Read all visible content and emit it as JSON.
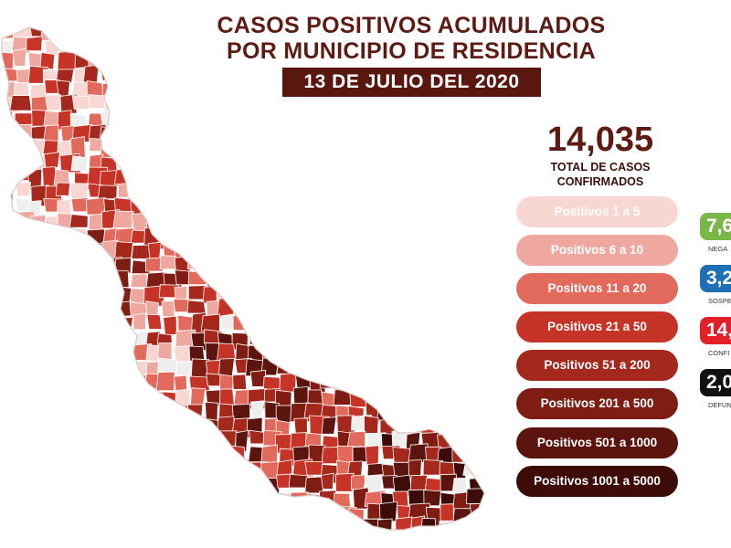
{
  "header": {
    "title_line1": "CASOS POSITIVOS ACUMULADOS",
    "title_line2": "POR MUNICIPIO DE RESIDENCIA",
    "date": "13 DE JULIO DEL 2020"
  },
  "summary": {
    "total": "14,035",
    "total_label_line1": "TOTAL DE CASOS",
    "total_label_line2": "CONFIRMADOS"
  },
  "legend": [
    {
      "label": "Positivos 1 a 5",
      "color": "#f8d7d3",
      "text_color": "#ffffff"
    },
    {
      "label": "Positivos 6 a 10",
      "color": "#efa8a0",
      "text_color": "#ffffff"
    },
    {
      "label": "Positivos 11 a 20",
      "color": "#e26a5c",
      "text_color": "#ffffff"
    },
    {
      "label": "Positivos 21 a 50",
      "color": "#c63427",
      "text_color": "#ffffff"
    },
    {
      "label": "Positivos 51 a 200",
      "color": "#a4281c",
      "text_color": "#ffffff"
    },
    {
      "label": "Positivos 201 a 500",
      "color": "#7f1d14",
      "text_color": "#ffffff"
    },
    {
      "label": "Positivos 501 a 1000",
      "color": "#5c140e",
      "text_color": "#ffffff"
    },
    {
      "label": "Positivos 1001 a 5000",
      "color": "#3d0c08",
      "text_color": "#ffffff"
    }
  ],
  "side_stats": [
    {
      "value": "7,6",
      "label": "NEGA",
      "color": "#7ab648"
    },
    {
      "value": "3,2",
      "label": "SOSPE",
      "color": "#1f6fb5"
    },
    {
      "value": "14,",
      "label": "CONFI",
      "color": "#e3202a"
    },
    {
      "value": "2,0",
      "label": "DEFUN",
      "color": "#111111"
    }
  ],
  "map": {
    "region_colors": [
      "#f8d7d3",
      "#efa8a0",
      "#e26a5c",
      "#c63427",
      "#a4281c",
      "#7f1d14",
      "#5c140e",
      "#3d0c08",
      "#eeeeee"
    ],
    "border_color": "#ffffff"
  }
}
